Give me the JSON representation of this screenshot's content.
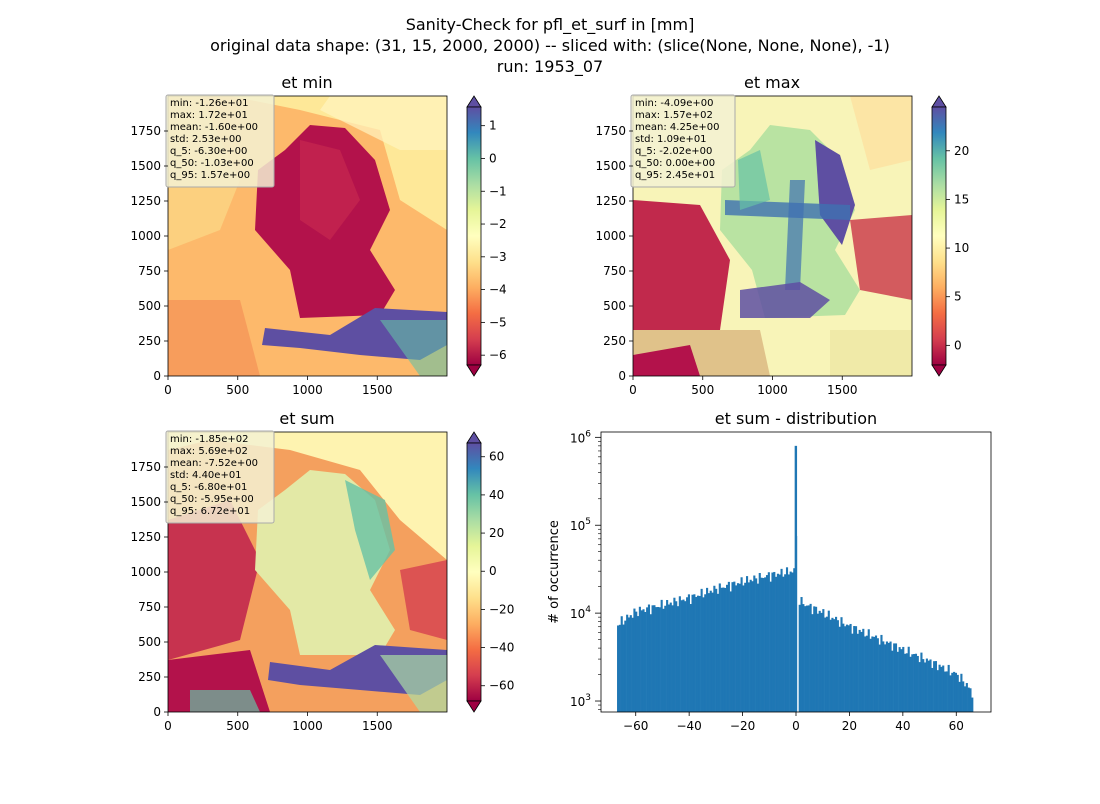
{
  "suptitle": {
    "line1": "Sanity-Check for pfl_et_surf in [mm]",
    "line2": "original data shape: (31, 15, 2000, 2000) -- sliced with: (slice(None, None, None), -1)",
    "line3": "run: 1953_07"
  },
  "chart_data": [
    {
      "type": "heatmap",
      "title": "et min",
      "xlim": [
        0,
        2000
      ],
      "ylim": [
        0,
        2000
      ],
      "xticks": [
        0,
        500,
        1000,
        1500
      ],
      "yticks": [
        0,
        250,
        500,
        750,
        1000,
        1250,
        1500,
        1750
      ],
      "colormap": "Spectral",
      "vmin": -6.3,
      "vmax": 1.57,
      "colorbar_ticks": [
        -6,
        -5,
        -4,
        -3,
        -2,
        -1,
        0,
        1
      ],
      "stats": [
        "min: -1.26e+01",
        "max: 1.72e+01",
        "mean: -1.60e+00",
        "std: 2.53e+00",
        "q_5: -6.30e+00",
        "q_50: -1.03e+00",
        "q_95: 1.57e+00"
      ]
    },
    {
      "type": "heatmap",
      "title": "et max",
      "xlim": [
        0,
        2000
      ],
      "ylim": [
        0,
        2000
      ],
      "xticks": [
        0,
        500,
        1000,
        1500
      ],
      "yticks": [
        0,
        250,
        500,
        750,
        1000,
        1250,
        1500,
        1750
      ],
      "colormap": "Spectral",
      "vmin": -2.02,
      "vmax": 24.5,
      "colorbar_ticks": [
        0,
        5,
        10,
        15,
        20
      ],
      "stats": [
        "min: -4.09e+00",
        "max: 1.57e+02",
        "mean: 4.25e+00",
        "std: 1.09e+01",
        "q_5: -2.02e+00",
        "q_50: 0.00e+00",
        "q_95: 2.45e+01"
      ]
    },
    {
      "type": "heatmap",
      "title": "et sum",
      "xlim": [
        0,
        2000
      ],
      "ylim": [
        0,
        2000
      ],
      "xticks": [
        0,
        500,
        1000,
        1500
      ],
      "yticks": [
        0,
        250,
        500,
        750,
        1000,
        1250,
        1500,
        1750
      ],
      "colormap": "Spectral",
      "vmin": -68.0,
      "vmax": 67.2,
      "colorbar_ticks": [
        -60,
        -40,
        -20,
        0,
        20,
        40,
        60
      ],
      "stats": [
        "min: -1.85e+02",
        "max: 5.69e+02",
        "mean: -7.52e+00",
        "std: 4.40e+01",
        "q_5: -6.80e+01",
        "q_50: -5.95e+00",
        "q_95: 6.72e+01"
      ]
    },
    {
      "type": "bar",
      "title": "et sum - distribution",
      "ylabel": "# of occurrence",
      "yscale": "log",
      "xlim": [
        -73,
        73
      ],
      "ylim": [
        750,
        1150000
      ],
      "xticks": [
        -60,
        -40,
        -20,
        0,
        20,
        40,
        60
      ],
      "xtick_labels": [
        "−60",
        "−40",
        "−20",
        "0",
        "20",
        "40",
        "60"
      ],
      "yticks": [
        1000,
        10000,
        100000,
        1000000
      ],
      "color": "#1f77b4",
      "x": [
        -67,
        -60,
        -50,
        -40,
        -30,
        -20,
        -10,
        -2,
        -0.5,
        0,
        0.6,
        2,
        10,
        20,
        30,
        40,
        50,
        60,
        63,
        66
      ],
      "values": [
        7500,
        10500,
        12500,
        15000,
        19000,
        23000,
        27000,
        30000,
        30000,
        800000,
        15000,
        13000,
        10000,
        7000,
        5200,
        3800,
        2800,
        2000,
        1600,
        1200
      ]
    }
  ]
}
